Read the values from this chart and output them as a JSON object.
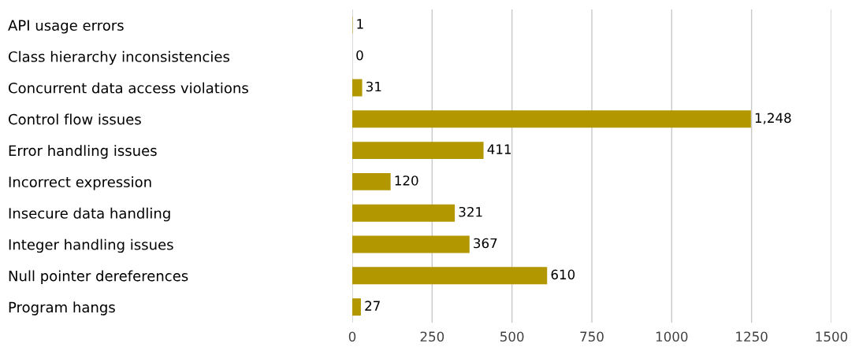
{
  "chart_data": {
    "type": "bar",
    "orientation": "horizontal",
    "categories": [
      "API usage errors",
      "Class hierarchy inconsistencies",
      "Concurrent data access violations",
      "Control flow issues",
      "Error handling issues",
      "Incorrect expression",
      "Insecure data handling",
      "Integer handling issues",
      "Null pointer dereferences",
      "Program hangs"
    ],
    "values": [
      1,
      0,
      31,
      1248,
      411,
      120,
      321,
      367,
      610,
      27
    ],
    "value_labels": [
      "1",
      "0",
      "31",
      "1,248",
      "411",
      "120",
      "321",
      "367",
      "610",
      "27"
    ],
    "color": "#b39700",
    "xlim": [
      0,
      1500
    ],
    "xticks": [
      0,
      250,
      500,
      750,
      1000,
      1250,
      1500
    ],
    "grid": "x",
    "legend": false
  }
}
